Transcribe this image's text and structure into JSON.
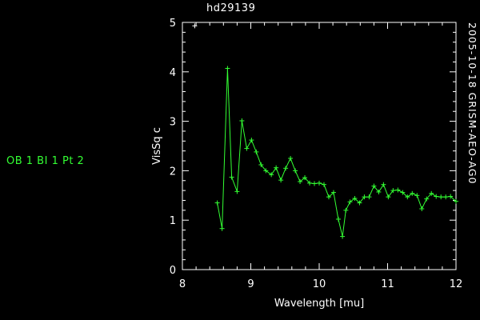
{
  "title": "hd29139",
  "side_label": "OB 1 BI 1 Pt 2",
  "right_label": "2005-10-18 GRISM-AEO-AG0",
  "colors": {
    "background": "#000000",
    "axes": "#ffffff",
    "series": "#33ff33"
  },
  "chart_data": {
    "type": "line",
    "title": "hd29139",
    "xlabel": "Wavelength [mu]",
    "ylabel": "VisSq c",
    "xlim": [
      8,
      12
    ],
    "ylim": [
      0,
      5
    ],
    "xticks": [
      8,
      9,
      10,
      11,
      12
    ],
    "yticks": [
      0,
      1,
      2,
      3,
      4,
      5
    ],
    "grid": false,
    "outlier": {
      "x": 8.18,
      "y": 4.93
    },
    "series": [
      {
        "marker": "+",
        "x": [
          8.51,
          8.58,
          8.66,
          8.72,
          8.8,
          8.87,
          8.94,
          9.01,
          9.08,
          9.15,
          9.22,
          9.3,
          9.37,
          9.44,
          9.51,
          9.58,
          9.65,
          9.72,
          9.79,
          9.86,
          9.93,
          10.0,
          10.07,
          10.14,
          10.21,
          10.28,
          10.34,
          10.39,
          10.45,
          10.52,
          10.59,
          10.66,
          10.73,
          10.8,
          10.87,
          10.94,
          11.01,
          11.08,
          11.15,
          11.22,
          11.29,
          11.36,
          11.43,
          11.5,
          11.57,
          11.64,
          11.71,
          11.78,
          11.85,
          11.92,
          12.0
        ],
        "y": [
          1.35,
          0.83,
          4.07,
          1.87,
          1.58,
          3.01,
          2.45,
          2.62,
          2.38,
          2.12,
          2.0,
          1.92,
          2.06,
          1.81,
          2.05,
          2.25,
          2.0,
          1.78,
          1.86,
          1.75,
          1.74,
          1.75,
          1.72,
          1.47,
          1.56,
          1.02,
          0.67,
          1.2,
          1.37,
          1.44,
          1.35,
          1.47,
          1.47,
          1.69,
          1.57,
          1.72,
          1.47,
          1.6,
          1.61,
          1.56,
          1.47,
          1.54,
          1.5,
          1.23,
          1.43,
          1.54,
          1.48,
          1.47,
          1.47,
          1.48,
          1.38
        ]
      }
    ]
  }
}
